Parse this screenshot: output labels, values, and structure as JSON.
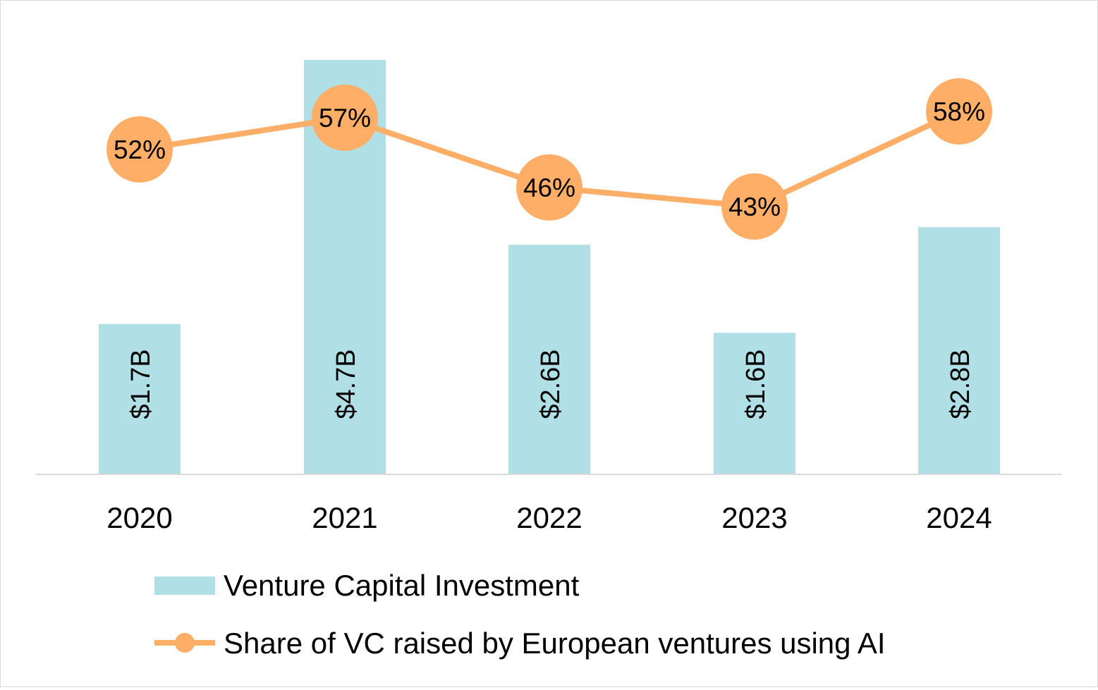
{
  "chart_data": {
    "type": "bar",
    "categories": [
      "2020",
      "2021",
      "2022",
      "2023",
      "2024"
    ],
    "series": [
      {
        "name": "Venture Capital Investment",
        "kind": "bar",
        "values": [
          1.7,
          4.7,
          2.6,
          1.6,
          2.8
        ],
        "labels": [
          "$1.7B",
          "$4.7B",
          "$2.6B",
          "$1.6B",
          "$2.8B"
        ],
        "color": "#b0dfe5"
      },
      {
        "name": "Share of VC raised by European ventures using AI",
        "kind": "line",
        "values": [
          52,
          57,
          46,
          43,
          58
        ],
        "labels": [
          "52%",
          "57%",
          "46%",
          "43%",
          "58%"
        ],
        "color": "#ffae68"
      }
    ],
    "ylim_bar": [
      0,
      4.7
    ],
    "ylim_line_approx": [
      22,
      76
    ],
    "legend_position": "bottom",
    "grid": false
  }
}
